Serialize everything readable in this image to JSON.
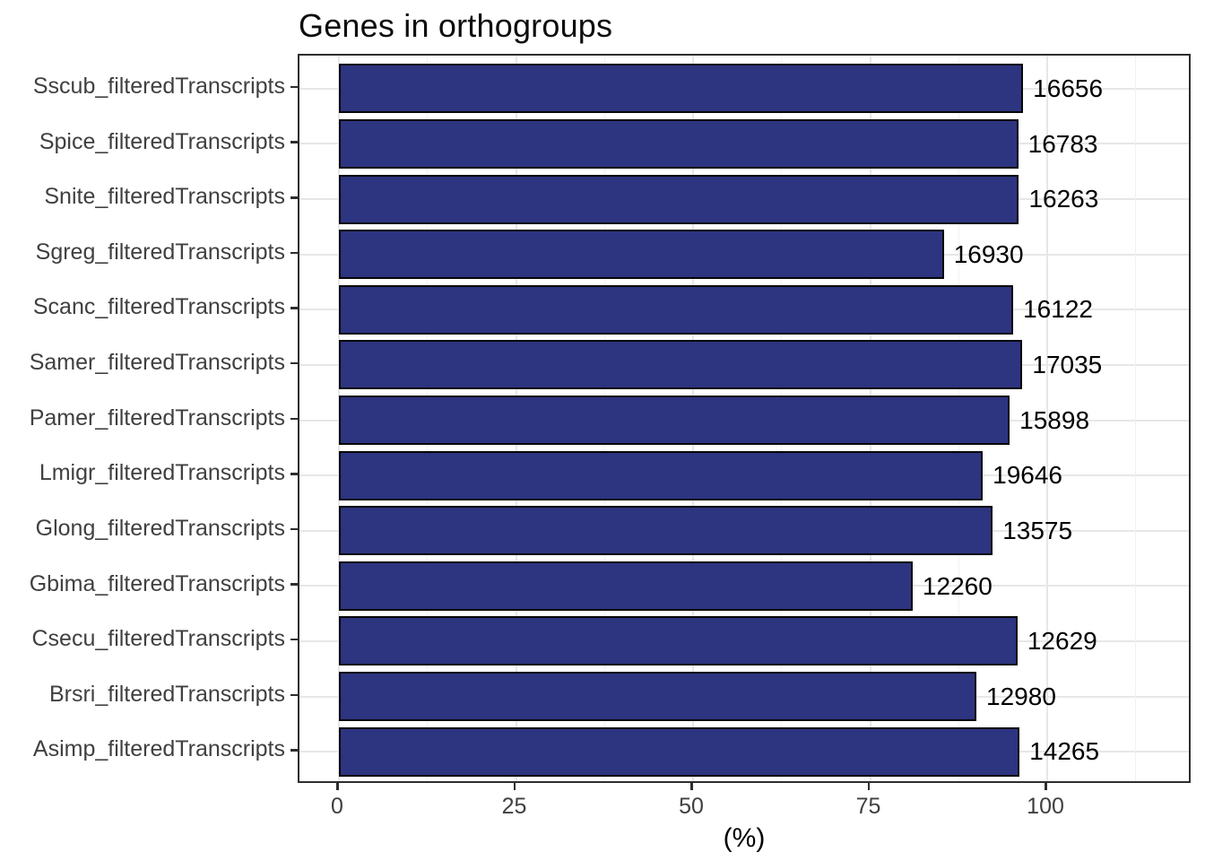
{
  "chart_data": {
    "type": "bar",
    "orientation": "horizontal",
    "title": "Genes in orthogroups",
    "xlabel": "(%)",
    "ylabel": "",
    "categories": [
      "Sscub_filteredTranscripts",
      "Spice_filteredTranscripts",
      "Snite_filteredTranscripts",
      "Sgreg_filteredTranscripts",
      "Scanc_filteredTranscripts",
      "Samer_filteredTranscripts",
      "Pamer_filteredTranscripts",
      "Lmigr_filteredTranscripts",
      "Glong_filteredTranscripts",
      "Gbima_filteredTranscripts",
      "Csecu_filteredTranscripts",
      "Brsri_filteredTranscripts",
      "Asimp_filteredTranscripts"
    ],
    "values_pct": [
      96.6,
      95.9,
      96.0,
      85.4,
      95.2,
      96.5,
      94.7,
      90.9,
      92.3,
      81.0,
      95.8,
      90.0,
      96.1
    ],
    "bar_labels": [
      "16656",
      "16783",
      "16263",
      "16930",
      "16122",
      "17035",
      "15898",
      "19646",
      "13575",
      "12260",
      "12629",
      "12980",
      "14265"
    ],
    "x_ticks": [
      0,
      25,
      50,
      75,
      100
    ],
    "x_minor_ticks": [
      12.5,
      37.5,
      62.5,
      87.5,
      112.5
    ],
    "xlim": [
      -5.57,
      120.5
    ],
    "grid": true,
    "legend": false,
    "colors": {
      "bar_fill": "#2d3480",
      "bar_stroke": "#060606",
      "grid_major": "#e7e7e7",
      "grid_minor": "#f2f2f2",
      "axis_text": "#404040",
      "panel_border": "#2e2e2e",
      "title_text": "#0d0d0d",
      "background": "#ffffff"
    }
  }
}
